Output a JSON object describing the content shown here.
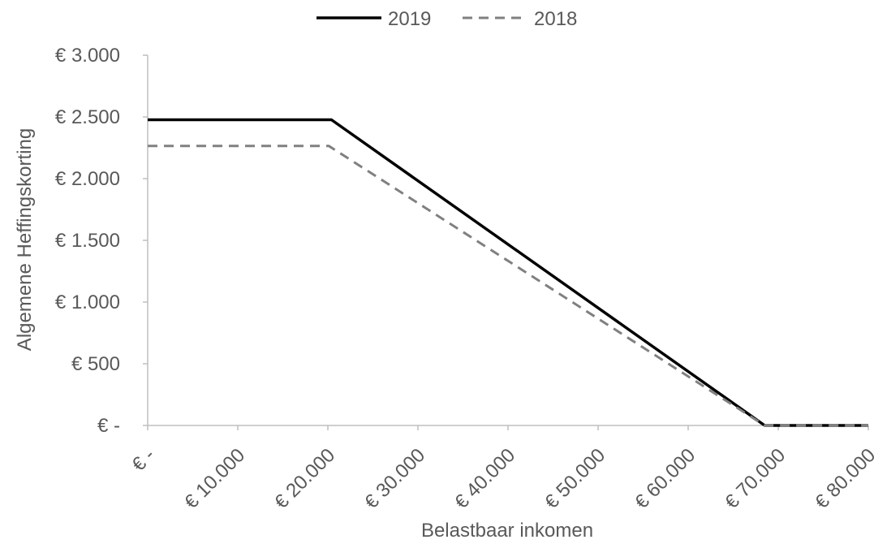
{
  "chart_data": {
    "type": "line",
    "title": "",
    "xlabel": "Belastbaar inkomen",
    "ylabel": "Algemene Heffingskorting",
    "xlim": [
      0,
      80000
    ],
    "ylim": [
      0,
      3000
    ],
    "grid": false,
    "legend_position": "top-center",
    "x_tick_values": [
      0,
      10000,
      20000,
      30000,
      40000,
      50000,
      60000,
      70000,
      80000
    ],
    "x_tick_labels": [
      "€ -",
      "€ 10.000",
      "€ 20.000",
      "€ 30.000",
      "€ 40.000",
      "€ 50.000",
      "€ 60.000",
      "€ 70.000",
      "€ 80.000"
    ],
    "y_tick_values": [
      0,
      500,
      1000,
      1500,
      2000,
      2500,
      3000
    ],
    "y_tick_labels": [
      "€ -",
      "€ 500",
      "€ 1.000",
      "€ 1.500",
      "€ 2.000",
      "€ 2.500",
      "€ 3.000"
    ],
    "series": [
      {
        "name": "2019",
        "color": "#000000",
        "dash": "solid",
        "points": [
          [
            0,
            2477
          ],
          [
            20400,
            2477
          ],
          [
            68500,
            0
          ],
          [
            80000,
            0
          ]
        ]
      },
      {
        "name": "2018",
        "color": "#808080",
        "dash": "dashed",
        "points": [
          [
            0,
            2265
          ],
          [
            20100,
            2265
          ],
          [
            68500,
            0
          ],
          [
            80000,
            0
          ]
        ]
      }
    ]
  }
}
